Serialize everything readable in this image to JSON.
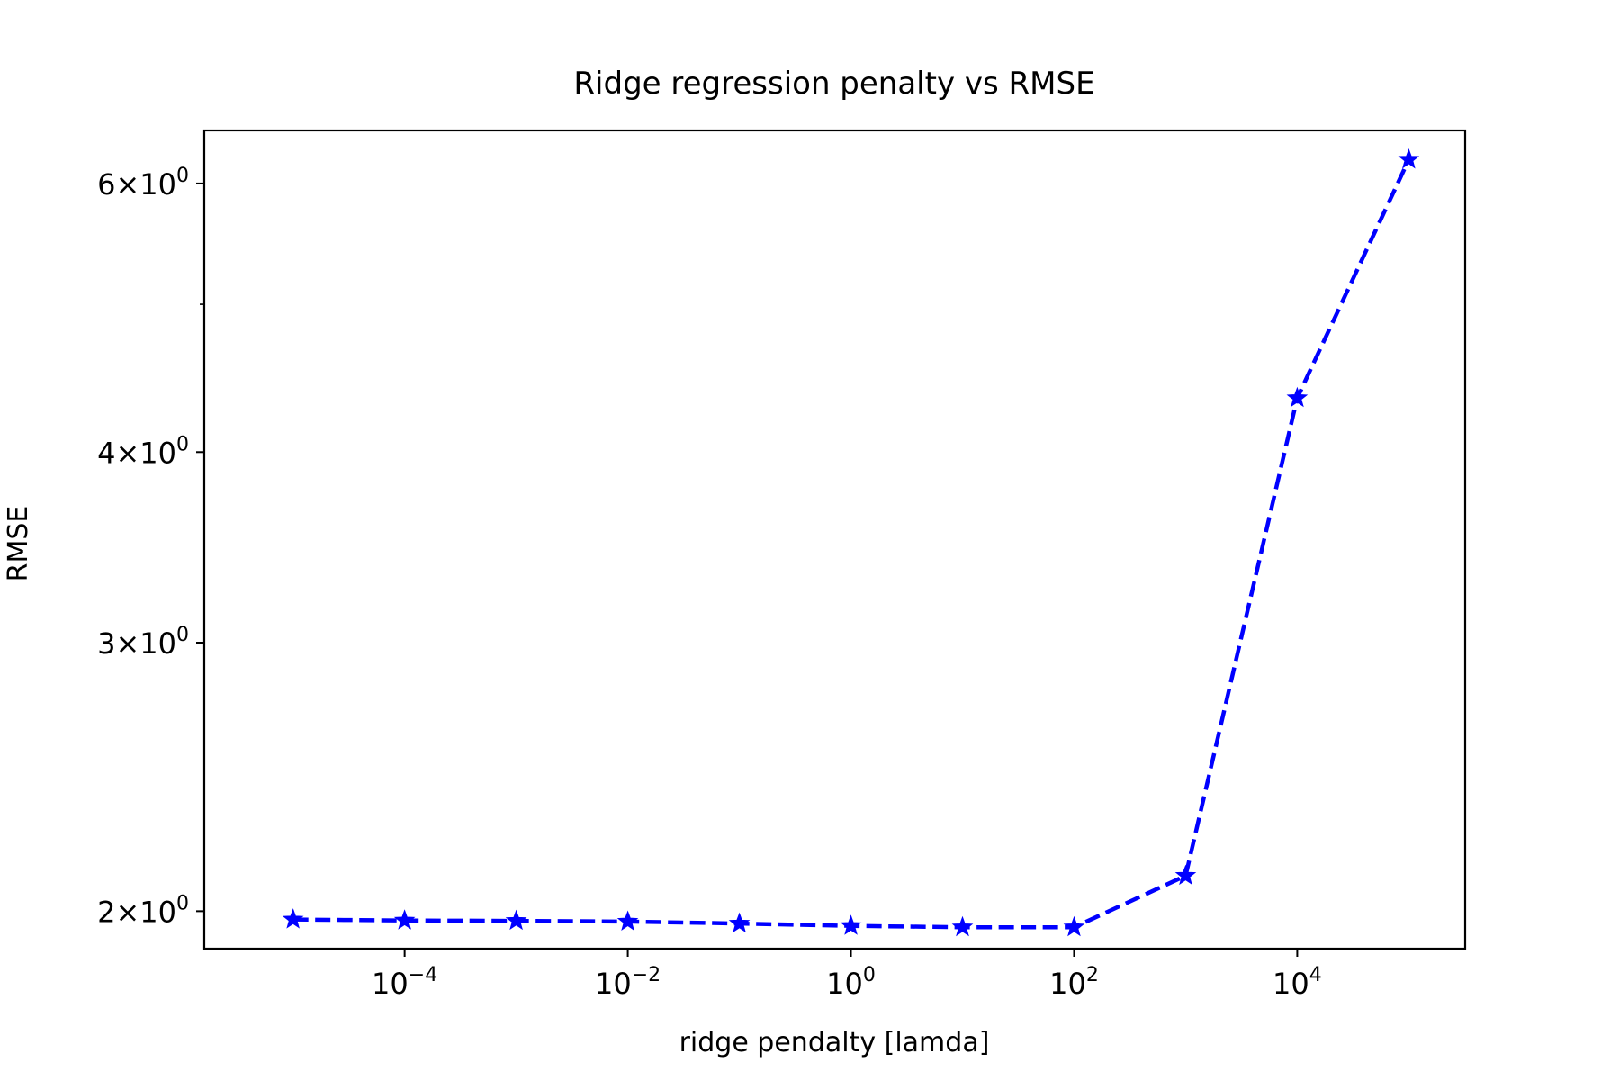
{
  "chart_data": {
    "type": "line",
    "title": "Ridge regression penalty vs RMSE",
    "xlabel": "ridge pendalty [lamda]",
    "ylabel": "RMSE",
    "xscale": "log",
    "yscale": "log",
    "xlim": [
      1.6e-06,
      320000.0
    ],
    "ylim": [
      1.89,
      6.5
    ],
    "grid": false,
    "legend": "none",
    "series_color": "#0000ff",
    "line_style": "dashed",
    "marker": "star",
    "x_ticks": [
      {
        "base": "10",
        "exp": "−4",
        "value": 0.0001
      },
      {
        "base": "10",
        "exp": "−2",
        "value": 0.01
      },
      {
        "base": "10",
        "exp": "0",
        "value": 1
      },
      {
        "base": "10",
        "exp": "2",
        "value": 100
      },
      {
        "base": "10",
        "exp": "4",
        "value": 10000
      }
    ],
    "y_ticks": [
      {
        "mant": "2",
        "base": "10",
        "exp": "0",
        "value": 2
      },
      {
        "mant": "3",
        "base": "10",
        "exp": "0",
        "value": 3
      },
      {
        "mant": "4",
        "base": "10",
        "exp": "0",
        "value": 4
      },
      {
        "mant": "6",
        "base": "10",
        "exp": "0",
        "value": 6
      }
    ],
    "y_minor_ticks": [
      5
    ],
    "series": [
      {
        "x": [
          1e-05,
          0.0001,
          0.001,
          0.01,
          0.1,
          1,
          10,
          100,
          1000,
          10000,
          100000
        ],
        "y": [
          1.975,
          1.972,
          1.971,
          1.969,
          1.963,
          1.956,
          1.952,
          1.952,
          2.11,
          4.34,
          6.22
        ]
      }
    ]
  }
}
